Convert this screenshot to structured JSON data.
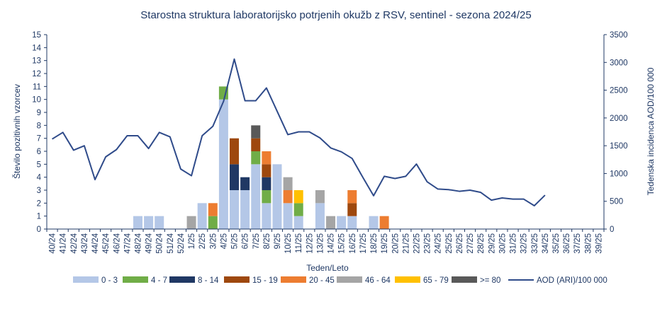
{
  "chart_data": {
    "type": "bar",
    "stacked": true,
    "title": "Starostna struktura  laboratorijsko potrjenih okužb z RSV, sentinel - sezona 2024/25",
    "xlabel": "Teden/Leto",
    "ylabel": "Število pozitivnih vzorcev",
    "ylabel_right": "Tedenska incidenca AOD/100 000",
    "ylim": [
      0,
      15
    ],
    "ylim_right": [
      0,
      3500
    ],
    "yticks": [
      0,
      1,
      2,
      3,
      4,
      5,
      6,
      7,
      8,
      9,
      10,
      11,
      12,
      13,
      14,
      15
    ],
    "yticks_right": [
      0,
      500,
      1000,
      1500,
      2000,
      2500,
      3000,
      3500
    ],
    "grid": false,
    "legend_position": "bottom",
    "categories": [
      "40/24",
      "41/24",
      "42/24",
      "43/24",
      "44/24",
      "45/24",
      "46/24",
      "47/24",
      "48/24",
      "49/24",
      "50/24",
      "51/24",
      "52/24",
      "1/25",
      "2/25",
      "3/25",
      "4/25",
      "5/25",
      "6/25",
      "7/25",
      "8/25",
      "9/25",
      "10/25",
      "11/25",
      "12/25",
      "13/25",
      "14/25",
      "15/25",
      "16/25",
      "17/25",
      "18/25",
      "19/25",
      "20/25",
      "21/25",
      "22/25",
      "23/25",
      "24/25",
      "25/25",
      "26/25",
      "27/25",
      "28/25",
      "29/25",
      "30/25",
      "31/25",
      "32/25",
      "33/25",
      "34/25",
      "35/25",
      "36/25",
      "37/25",
      "38/25",
      "39/25"
    ],
    "series": [
      {
        "name": "0 - 3",
        "color": "#b4c7e7",
        "values": [
          0,
          0,
          0,
          0,
          0,
          0,
          0,
          0,
          1,
          1,
          1,
          0,
          0,
          0,
          2,
          0,
          10,
          3,
          3,
          5,
          2,
          5,
          2,
          1,
          0,
          2,
          0,
          1,
          1,
          0,
          1,
          0,
          0,
          0,
          0,
          0,
          0,
          0,
          0,
          0,
          0,
          0,
          0,
          0,
          0,
          0,
          0,
          0,
          0,
          0,
          0,
          0
        ]
      },
      {
        "name": "4 - 7",
        "color": "#70ad47",
        "values": [
          0,
          0,
          0,
          0,
          0,
          0,
          0,
          0,
          0,
          0,
          0,
          0,
          0,
          0,
          0,
          1,
          1,
          0,
          0,
          1,
          1,
          0,
          0,
          1,
          0,
          0,
          0,
          0,
          0,
          0,
          0,
          0,
          0,
          0,
          0,
          0,
          0,
          0,
          0,
          0,
          0,
          0,
          0,
          0,
          0,
          0,
          0,
          0,
          0,
          0,
          0,
          0
        ]
      },
      {
        "name": "8 - 14",
        "color": "#203864",
        "values": [
          0,
          0,
          0,
          0,
          0,
          0,
          0,
          0,
          0,
          0,
          0,
          0,
          0,
          0,
          0,
          0,
          0,
          2,
          1,
          0,
          1,
          0,
          0,
          0,
          0,
          0,
          0,
          0,
          0,
          0,
          0,
          0,
          0,
          0,
          0,
          0,
          0,
          0,
          0,
          0,
          0,
          0,
          0,
          0,
          0,
          0,
          0,
          0,
          0,
          0,
          0,
          0
        ]
      },
      {
        "name": "15 - 19",
        "color": "#9e480e",
        "values": [
          0,
          0,
          0,
          0,
          0,
          0,
          0,
          0,
          0,
          0,
          0,
          0,
          0,
          0,
          0,
          0,
          0,
          2,
          0,
          1,
          1,
          0,
          0,
          0,
          0,
          0,
          0,
          0,
          1,
          0,
          0,
          0,
          0,
          0,
          0,
          0,
          0,
          0,
          0,
          0,
          0,
          0,
          0,
          0,
          0,
          0,
          0,
          0,
          0,
          0,
          0,
          0
        ]
      },
      {
        "name": "20 - 45",
        "color": "#ed7d31",
        "values": [
          0,
          0,
          0,
          0,
          0,
          0,
          0,
          0,
          0,
          0,
          0,
          0,
          0,
          0,
          0,
          1,
          0,
          0,
          0,
          0,
          1,
          0,
          1,
          0,
          0,
          0,
          0,
          0,
          1,
          0,
          0,
          1,
          0,
          0,
          0,
          0,
          0,
          0,
          0,
          0,
          0,
          0,
          0,
          0,
          0,
          0,
          0,
          0,
          0,
          0,
          0,
          0
        ]
      },
      {
        "name": "46 - 64",
        "color": "#a5a5a5",
        "values": [
          0,
          0,
          0,
          0,
          0,
          0,
          0,
          0,
          0,
          0,
          0,
          0,
          0,
          1,
          0,
          0,
          0,
          0,
          0,
          0,
          0,
          0,
          1,
          0,
          0,
          1,
          1,
          0,
          0,
          0,
          0,
          0,
          0,
          0,
          0,
          0,
          0,
          0,
          0,
          0,
          0,
          0,
          0,
          0,
          0,
          0,
          0,
          0,
          0,
          0,
          0,
          0
        ]
      },
      {
        "name": "65 - 79",
        "color": "#ffc000",
        "values": [
          0,
          0,
          0,
          0,
          0,
          0,
          0,
          0,
          0,
          0,
          0,
          0,
          0,
          0,
          0,
          0,
          0,
          0,
          0,
          0,
          0,
          0,
          0,
          1,
          0,
          0,
          0,
          0,
          0,
          0,
          0,
          0,
          0,
          0,
          0,
          0,
          0,
          0,
          0,
          0,
          0,
          0,
          0,
          0,
          0,
          0,
          0,
          0,
          0,
          0,
          0,
          0
        ]
      },
      {
        "name": ">= 80",
        "color": "#595959",
        "values": [
          0,
          0,
          0,
          0,
          0,
          0,
          0,
          0,
          0,
          0,
          0,
          0,
          0,
          0,
          0,
          0,
          0,
          0,
          0,
          1,
          0,
          0,
          0,
          0,
          0,
          0,
          0,
          0,
          0,
          0,
          0,
          0,
          0,
          0,
          0,
          0,
          0,
          0,
          0,
          0,
          0,
          0,
          0,
          0,
          0,
          0,
          0,
          0,
          0,
          0,
          0,
          0
        ]
      }
    ],
    "line_series": {
      "name": "AOD (ARI)/100 000",
      "type": "line",
      "axis": "right",
      "color": "#2f4b8a",
      "values": [
        1620,
        1740,
        1420,
        1500,
        890,
        1300,
        1430,
        1680,
        1680,
        1450,
        1740,
        1660,
        1080,
        960,
        1680,
        1850,
        2300,
        3060,
        2310,
        2310,
        2540,
        2120,
        1700,
        1750,
        1750,
        1640,
        1460,
        1390,
        1270,
        930,
        600,
        950,
        910,
        950,
        1170,
        850,
        720,
        710,
        680,
        700,
        660,
        520,
        560,
        540,
        540,
        420,
        610,
        null,
        null,
        null,
        null,
        null
      ]
    }
  }
}
